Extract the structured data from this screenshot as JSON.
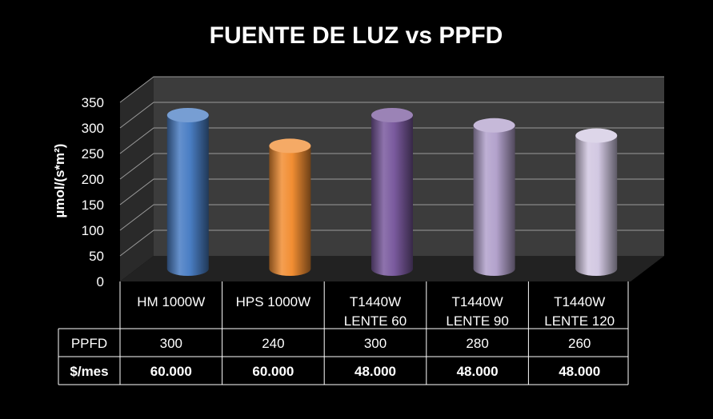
{
  "chart_data": {
    "type": "bar",
    "title": "FUENTE DE LUZ vs PPFD",
    "ylabel": "µmol/(s*m²)",
    "ylim": [
      0,
      350
    ],
    "yticks": [
      "0",
      "50",
      "100",
      "150",
      "200",
      "250",
      "300",
      "350"
    ],
    "grid": true,
    "categories": [
      [
        "HM 1000W"
      ],
      [
        "HPS 1000W"
      ],
      [
        "T1440W",
        "LENTE 60"
      ],
      [
        "T1440W",
        "LENTE 90"
      ],
      [
        "T1440W",
        "LENTE 120"
      ]
    ],
    "values": [
      300,
      240,
      300,
      280,
      260
    ],
    "colors": [
      "#4a7ec4",
      "#f28e33",
      "#7a5a9e",
      "#b3a2cc",
      "#d2c8e2"
    ],
    "table": {
      "rows": [
        {
          "label": "PPFD",
          "bold": false,
          "cells": [
            "300",
            "240",
            "300",
            "280",
            "260"
          ]
        },
        {
          "label": "$/mes",
          "bold": true,
          "cells": [
            "60.000",
            "60.000",
            "48.000",
            "48.000",
            "48.000"
          ]
        }
      ]
    }
  }
}
